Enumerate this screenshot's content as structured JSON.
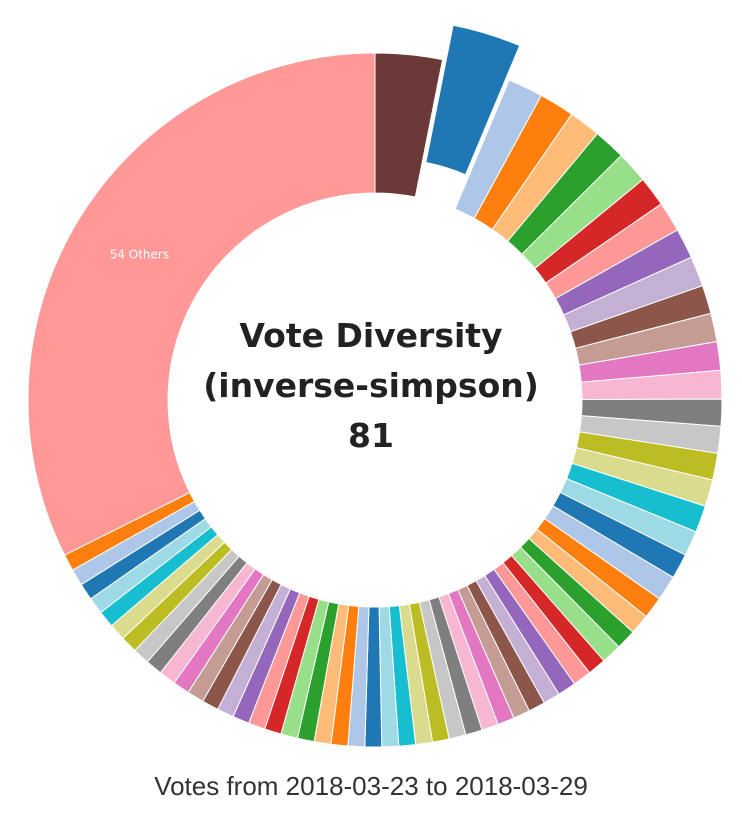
{
  "chart_data": {
    "type": "pie",
    "title": "",
    "center_text": [
      "Vote Diversity",
      "(inverse-simpson)",
      "81"
    ],
    "footer": "Votes from 2018-03-23 to 2018-03-29",
    "palette": [
      "#1f77b4",
      "#aec7e8",
      "#ff7f0e",
      "#ffbb78",
      "#2ca02c",
      "#98df8a",
      "#d62728",
      "#ff9896",
      "#9467bd",
      "#c5b0d5",
      "#8c564b",
      "#c49c94",
      "#e377c2",
      "#f7b6d2",
      "#7f7f7f",
      "#c7c7c7",
      "#bcbd22",
      "#dbdb8d",
      "#17becf",
      "#9edae5"
    ],
    "others_color": "#ff9896",
    "first_color": "#6b3a38",
    "slices": [
      {
        "value": 4.0
      },
      {
        "value": 4.1,
        "exploded": true
      },
      {
        "value": 2.1
      },
      {
        "value": 2.1
      },
      {
        "value": 1.9
      },
      {
        "value": 1.9
      },
      {
        "value": 1.9
      },
      {
        "value": 1.8
      },
      {
        "value": 1.8
      },
      {
        "value": 1.8
      },
      {
        "value": 1.8
      },
      {
        "value": 1.7
      },
      {
        "value": 1.7
      },
      {
        "value": 1.7
      },
      {
        "value": 1.7
      },
      {
        "value": 1.6
      },
      {
        "value": 1.6
      },
      {
        "value": 1.6
      },
      {
        "value": 1.6
      },
      {
        "value": 1.6
      },
      {
        "value": 1.5
      },
      {
        "value": 1.5
      },
      {
        "value": 1.5
      },
      {
        "value": 1.3
      },
      {
        "value": 1.2
      },
      {
        "value": 1.2
      },
      {
        "value": 1.2
      },
      {
        "value": 1.1
      },
      {
        "value": 1.1
      },
      {
        "value": 1.1
      },
      {
        "value": 1.0
      },
      {
        "value": 1.0
      },
      {
        "value": 1.0
      },
      {
        "value": 1.0
      },
      {
        "value": 1.0
      },
      {
        "value": 1.0
      },
      {
        "value": 1.0
      },
      {
        "value": 1.0
      },
      {
        "value": 1.0
      },
      {
        "value": 1.0
      },
      {
        "value": 1.0
      },
      {
        "value": 1.0
      },
      {
        "value": 1.0
      },
      {
        "value": 1.0
      },
      {
        "value": 1.0
      },
      {
        "value": 1.0
      },
      {
        "value": 1.0
      },
      {
        "value": 1.0
      },
      {
        "value": 1.0
      },
      {
        "value": 1.0
      },
      {
        "value": 1.0
      },
      {
        "value": 1.0
      },
      {
        "value": 1.0
      },
      {
        "value": 1.0
      },
      {
        "value": 1.0
      },
      {
        "value": 1.0
      },
      {
        "value": 1.0
      },
      {
        "value": 1.0
      },
      {
        "value": 1.0
      },
      {
        "value": 1.0
      },
      {
        "value": 1.0
      },
      {
        "value": 1.0
      },
      {
        "value": 1.0
      },
      {
        "value": 1.0
      },
      {
        "value": 41.5,
        "label": "54 Others",
        "others": true
      }
    ]
  }
}
